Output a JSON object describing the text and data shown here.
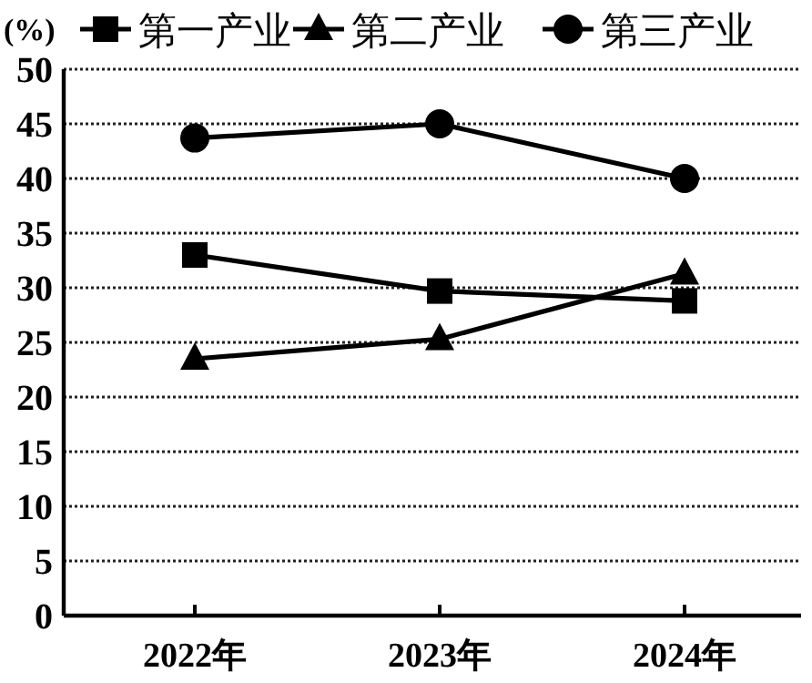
{
  "chart_data": {
    "type": "line",
    "ylabel": "(%)",
    "categories": [
      "2022年",
      "2023年",
      "2024年"
    ],
    "series": [
      {
        "name": "第一产业",
        "color": "#000000",
        "marker": "square",
        "values": [
          33,
          29.7,
          28.8
        ]
      },
      {
        "name": "第二产业",
        "color": "#000000",
        "marker": "triangle",
        "values": [
          23.5,
          25.3,
          31.3
        ]
      },
      {
        "name": "第三产业",
        "color": "#000000",
        "marker": "circle",
        "values": [
          43.7,
          45,
          40
        ]
      }
    ],
    "ylim": [
      0,
      50
    ],
    "yticks": [
      0,
      5,
      10,
      15,
      20,
      25,
      30,
      35,
      40,
      45,
      50
    ],
    "grid": "y",
    "legend": "top",
    "line_style": "solid"
  }
}
